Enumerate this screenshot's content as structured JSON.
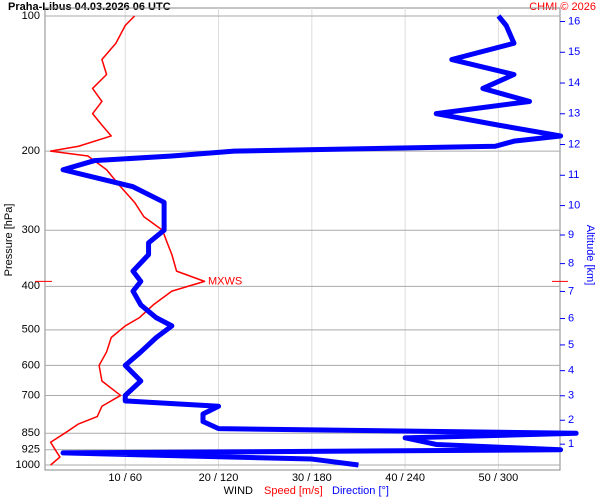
{
  "chart_data": {
    "type": "line",
    "title": "Praha-Libus   04.03.2026 06 UTC",
    "credit": "CHMI © 2026",
    "ylabel": "Pressure [hPa]",
    "y2label": "Altitude [km]",
    "xlabel": "WIND",
    "annotation": {
      "text": "MXWS",
      "pressure": 390
    },
    "ylog": true,
    "ylim": [
      1000,
      100
    ],
    "yticks": [
      100,
      200,
      300,
      400,
      500,
      600,
      700,
      850,
      925,
      1000
    ],
    "y2ticks": [
      1,
      2,
      3,
      4,
      5,
      6,
      7,
      8,
      9,
      10,
      11,
      12,
      13,
      14,
      15,
      16
    ],
    "xlim": [
      1.4,
      56.6
    ],
    "x2lim": [
      8.4,
      339.6
    ],
    "xticks": [
      {
        "value": 10,
        "label": "10 / 60"
      },
      {
        "value": 20,
        "label": "20 / 120"
      },
      {
        "value": 30,
        "label": "30 / 180"
      },
      {
        "value": 40,
        "label": "40 / 240"
      },
      {
        "value": 50,
        "label": "50 / 300"
      }
    ],
    "grid": true,
    "series": [
      {
        "name": "Speed [m/s]",
        "color": "#ff0000",
        "pressure": [
          1000,
          960,
          925,
          890,
          850,
          810,
          780,
          740,
          700,
          650,
          600,
          560,
          520,
          490,
          470,
          440,
          410,
          390,
          370,
          340,
          320,
          300,
          280,
          260,
          240,
          220,
          205,
          200,
          195,
          185,
          175,
          165,
          155,
          145,
          135,
          125,
          115,
          105,
          100
        ],
        "values": [
          2,
          3,
          2.5,
          2,
          3.5,
          5,
          7,
          7.5,
          9.5,
          7.5,
          7.2,
          8,
          8.5,
          10,
          11.5,
          13,
          15,
          18.5,
          15.5,
          15,
          14.5,
          14,
          12,
          11,
          9.5,
          8,
          6,
          2,
          5,
          8.5,
          7.5,
          6.5,
          7.5,
          6.5,
          8,
          7.5,
          9,
          10,
          11
        ]
      },
      {
        "name": "Direction [°]",
        "color": "#0000ff",
        "axis": "x2",
        "pressure": [
          1000,
          970,
          940,
          925,
          900,
          870,
          850,
          830,
          800,
          770,
          740,
          720,
          700,
          650,
          600,
          560,
          520,
          490,
          470,
          440,
          410,
          390,
          370,
          340,
          320,
          300,
          280,
          260,
          240,
          220,
          210,
          205,
          200,
          195,
          190,
          185,
          175,
          165,
          155,
          145,
          135,
          125,
          115,
          105,
          100
        ],
        "values": [
          210,
          180,
          20,
          340,
          260,
          240,
          350,
          120,
          110,
          110,
          120,
          60,
          60,
          70,
          60,
          70,
          80,
          90,
          80,
          70,
          65,
          70,
          65,
          75,
          75,
          85,
          85,
          85,
          65,
          20,
          40,
          90,
          130,
          298,
          310,
          340,
          300,
          260,
          320,
          290,
          310,
          270,
          310,
          305,
          300
        ]
      }
    ]
  }
}
